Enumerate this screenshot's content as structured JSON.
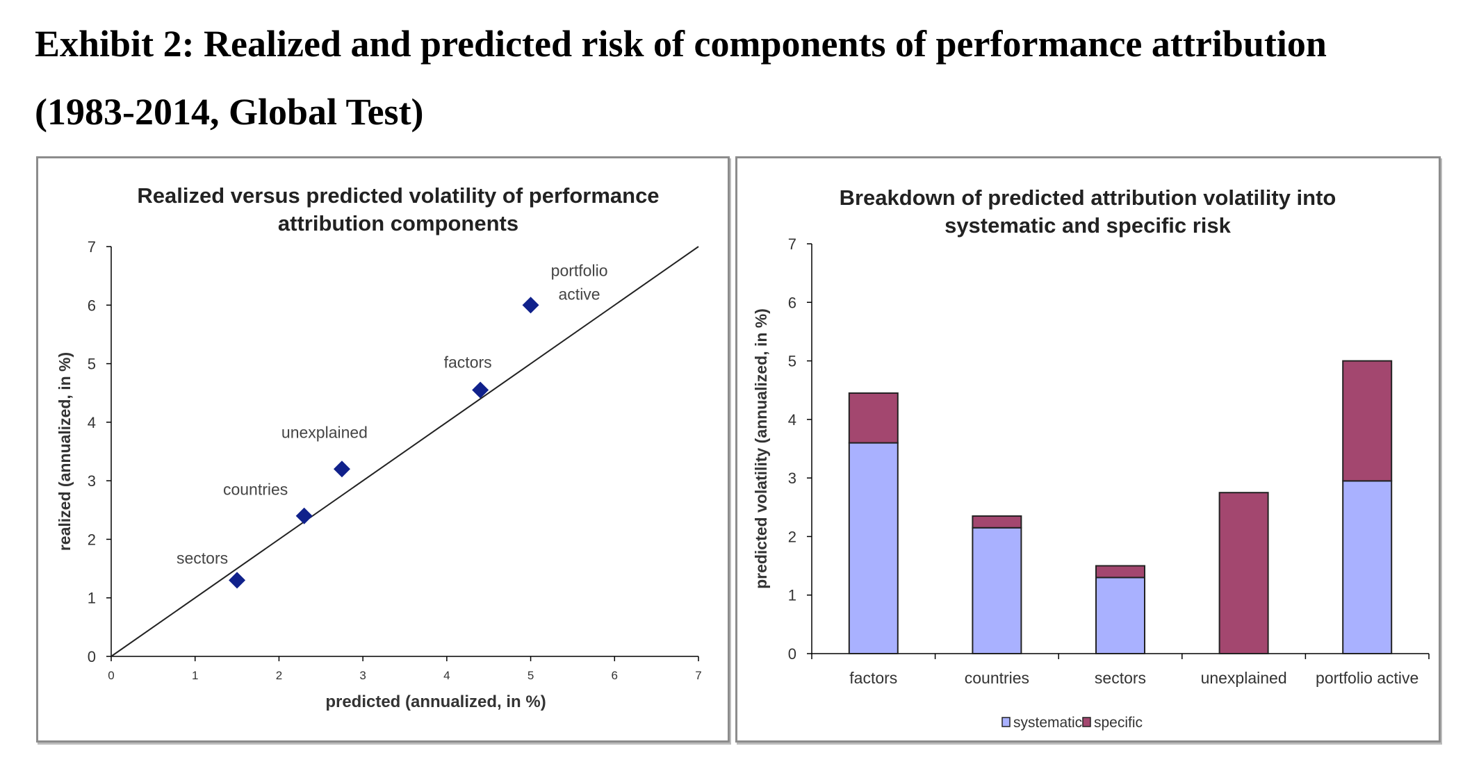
{
  "exhibit": {
    "title_line1": "Exhibit 2: Realized and predicted risk of components of performance attribution",
    "title_line2": "(1983-2014, Global Test)"
  },
  "chart_data": [
    {
      "type": "scatter",
      "title_lines": [
        "Realized versus predicted volatility of performance",
        "attribution components"
      ],
      "xlabel": "predicted (annualized, in %)",
      "ylabel": "realized (annualized, in %)",
      "xlim": [
        0,
        7
      ],
      "ylim": [
        0,
        7
      ],
      "xticks": [
        0,
        1,
        2,
        3,
        4,
        5,
        6,
        7
      ],
      "yticks": [
        0,
        1,
        2,
        3,
        4,
        5,
        6,
        7
      ],
      "reference_line": "y = x",
      "marker_color": "#10218b",
      "points": [
        {
          "label": "sectors",
          "x": 1.5,
          "y": 1.3
        },
        {
          "label": "countries",
          "x": 2.3,
          "y": 2.4
        },
        {
          "label": "unexplained",
          "x": 2.75,
          "y": 3.2
        },
        {
          "label": "factors",
          "x": 4.4,
          "y": 4.55
        },
        {
          "label_lines": [
            "portfolio",
            "active"
          ],
          "x": 5.0,
          "y": 6.0
        }
      ]
    },
    {
      "type": "bar",
      "stacked": true,
      "title_lines": [
        "Breakdown of predicted attribution volatility into",
        "systematic and specific risk"
      ],
      "xlabel": "",
      "ylabel": "predicted volatility (annualized, in %)",
      "ylim": [
        0,
        7
      ],
      "yticks": [
        0,
        1,
        2,
        3,
        4,
        5,
        6,
        7
      ],
      "categories": [
        "factors",
        "countries",
        "sectors",
        "unexplained",
        "portfolio active"
      ],
      "series": [
        {
          "name": "systematic",
          "color": "#a9b1ff",
          "values": [
            3.6,
            2.15,
            1.3,
            0,
            2.95
          ]
        },
        {
          "name": "specific",
          "color": "#a3476f",
          "values": [
            0.85,
            0.2,
            0.2,
            2.75,
            2.05
          ]
        }
      ],
      "legend": {
        "position": "bottom",
        "entries": [
          "systematic",
          "specific"
        ]
      }
    }
  ]
}
